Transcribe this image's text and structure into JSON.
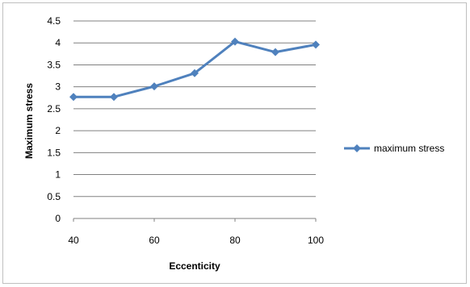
{
  "chart_data": {
    "type": "line",
    "title": "",
    "xlabel": "Eccenticity",
    "ylabel": "Maximum stress",
    "x": [
      40,
      50,
      60,
      70,
      80,
      90,
      100
    ],
    "x_ticks": [
      "40",
      "60",
      "80",
      "100"
    ],
    "y_ticks": [
      "0",
      "0.5",
      "1",
      "1.5",
      "2",
      "2.5",
      "3",
      "3.5",
      "4",
      "4.5"
    ],
    "ylim": [
      0,
      4.5
    ],
    "xlim": [
      40,
      100
    ],
    "grid": "horizontal",
    "legend_position": "right",
    "series": [
      {
        "name": "maximum stress",
        "color": "#4f81bd",
        "marker": "diamond",
        "values": [
          2.77,
          2.77,
          3.01,
          3.31,
          4.03,
          3.79,
          3.96
        ]
      }
    ]
  }
}
